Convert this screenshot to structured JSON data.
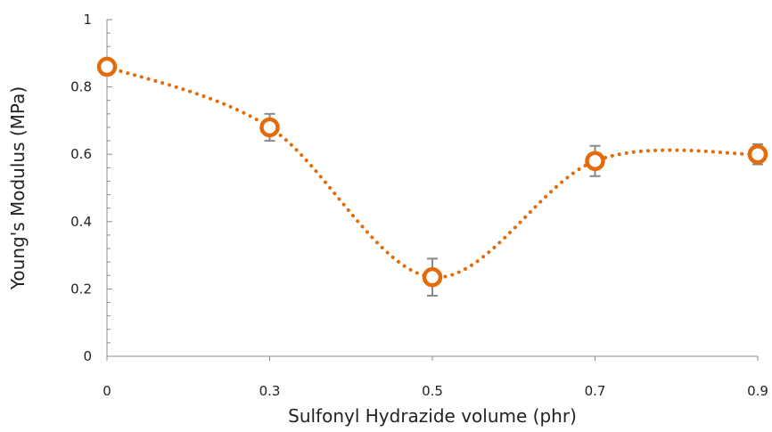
{
  "chart_data": {
    "type": "line",
    "xlabel": "Sulfonyl Hydrazide volume (phr)",
    "ylabel": "Young's Modulus (MPa)",
    "categories": [
      "0",
      "0.3",
      "0.5",
      "0.7",
      "0.9"
    ],
    "series": [
      {
        "values": [
          0.86,
          0.68,
          0.235,
          0.58,
          0.6
        ],
        "error": [
          0.015,
          0.04,
          0.055,
          0.045,
          0.03
        ],
        "color": "#E36C09"
      }
    ],
    "ylim": [
      0,
      1
    ],
    "y_ticks": [
      "0",
      "0.2",
      "0.4",
      "0.6",
      "0.8",
      "1"
    ],
    "line_style": "dotted, smoothed",
    "marker": "hollow circle",
    "grid": false,
    "legend": "none"
  }
}
